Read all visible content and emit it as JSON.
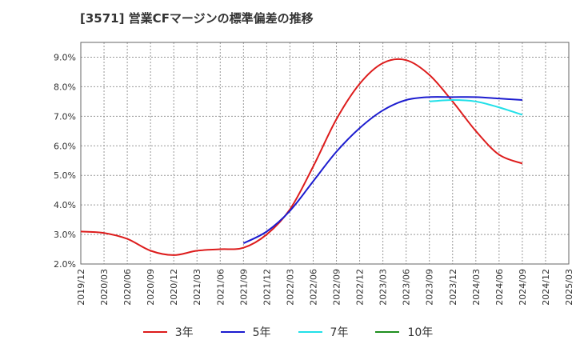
{
  "title": "[3571]  営業CFマージンの標準偏差の推移",
  "chart_data": {
    "type": "line",
    "title": "[3571]  営業CFマージンの標準偏差の推移",
    "xlabel": "",
    "ylabel": "",
    "ylim": [
      2.0,
      9.5
    ],
    "y_ticks": [
      "2.0%",
      "3.0%",
      "4.0%",
      "5.0%",
      "6.0%",
      "7.0%",
      "8.0%",
      "9.0%"
    ],
    "y_tick_values": [
      2.0,
      3.0,
      4.0,
      5.0,
      6.0,
      7.0,
      8.0,
      9.0
    ],
    "x_ticks": [
      "2019/12",
      "2020/03",
      "2020/06",
      "2020/09",
      "2020/12",
      "2021/03",
      "2021/06",
      "2021/09",
      "2021/12",
      "2022/03",
      "2022/06",
      "2022/09",
      "2022/12",
      "2023/03",
      "2023/06",
      "2023/09",
      "2023/12",
      "2024/03",
      "2024/06",
      "2024/09",
      "2024/12",
      "2025/03"
    ],
    "grid": true,
    "legend_position": "bottom",
    "series": [
      {
        "name": "3年",
        "color": "#dd1c1c",
        "x": [
          "2019/12",
          "2020/03",
          "2020/06",
          "2020/09",
          "2020/12",
          "2021/03",
          "2021/06",
          "2021/09",
          "2021/12",
          "2022/03",
          "2022/06",
          "2022/09",
          "2022/12",
          "2023/03",
          "2023/06",
          "2023/09",
          "2023/12",
          "2024/03",
          "2024/06",
          "2024/09"
        ],
        "values": [
          3.1,
          3.05,
          2.85,
          2.45,
          2.3,
          2.45,
          2.5,
          2.55,
          3.0,
          3.85,
          5.3,
          6.9,
          8.1,
          8.8,
          8.9,
          8.4,
          7.5,
          6.5,
          5.7,
          5.4
        ]
      },
      {
        "name": "5年",
        "color": "#1c1ccf",
        "x": [
          "2021/09",
          "2021/12",
          "2022/03",
          "2022/06",
          "2022/09",
          "2022/12",
          "2023/03",
          "2023/06",
          "2023/09",
          "2023/12",
          "2024/03",
          "2024/06",
          "2024/09"
        ],
        "values": [
          2.7,
          3.1,
          3.8,
          4.8,
          5.8,
          6.6,
          7.2,
          7.55,
          7.65,
          7.65,
          7.65,
          7.6,
          7.55
        ]
      },
      {
        "name": "7年",
        "color": "#22e0e8",
        "x": [
          "2023/09",
          "2023/12",
          "2024/03",
          "2024/06",
          "2024/09"
        ],
        "values": [
          7.5,
          7.55,
          7.5,
          7.3,
          7.05
        ]
      },
      {
        "name": "10年",
        "color": "#1f8f1f",
        "x": [],
        "values": []
      }
    ]
  }
}
